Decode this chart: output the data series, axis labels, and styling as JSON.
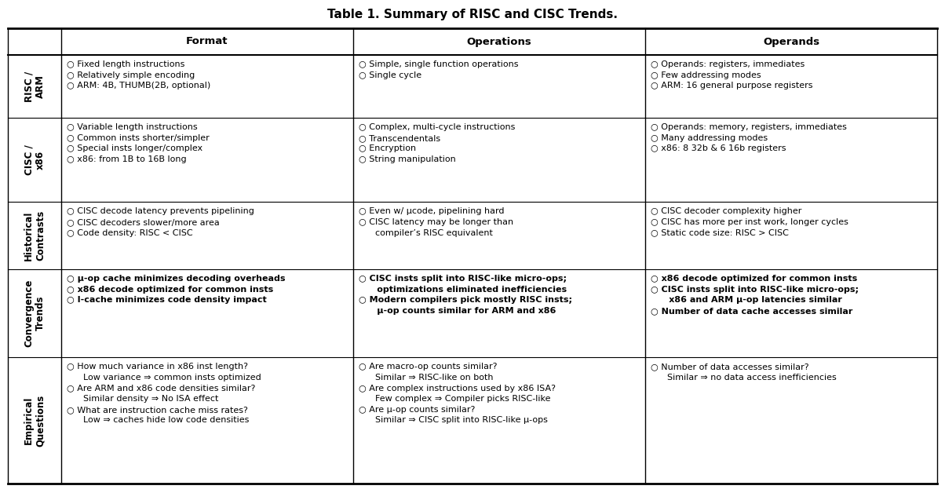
{
  "title": "Table 1. Summary of RISC and CISC Trends.",
  "col_headers": [
    "Format",
    "Operations",
    "Operands"
  ],
  "row_labels": [
    "RISC /\nARM",
    "CISC /\nx86",
    "Historical\nContrasts",
    "Convergence\nTrends",
    "Empirical\nQuestions"
  ],
  "cells": [
    [
      "○ Fixed length instructions\n○ Relatively simple encoding\n○ ARM: 4B, THUMB(2B, optional)",
      "○ Simple, single function operations\n○ Single cycle",
      "○ Operands: registers, immediates\n○ Few addressing modes\n○ ARM: 16 general purpose registers"
    ],
    [
      "○ Variable length instructions\n○ Common insts shorter/simpler\n○ Special insts longer/complex\n○ x86: from 1B to 16B long",
      "○ Complex, multi-cycle instructions\n○ Transcendentals\n○ Encryption\n○ String manipulation",
      "○ Operands: memory, registers, immediates\n○ Many addressing modes\n○ x86: 8 32b & 6 16b registers"
    ],
    [
      "○ CISC decode latency prevents pipelining\n○ CISC decoders slower/more area\n○ Code density: RISC < CISC",
      "○ Even w/ μcode, pipelining hard\n○ CISC latency may be longer than\n      compiler’s RISC equivalent",
      "○ CISC decoder complexity higher\n○ CISC has more per inst work, longer cycles\n○ Static code size: RISC > CISC"
    ],
    [
      "○ μ-op cache minimizes decoding overheads\n○ x86 decode optimized for common insts\n○ I-cache minimizes code density impact",
      "○ CISC insts split into RISC-like micro-ops;\n      optimizations eliminated inefficiencies\n○ Modern compilers pick mostly RISC insts;\n      μ-op counts similar for ARM and x86",
      "○ x86 decode optimized for common insts\n○ CISC insts split into RISC-like micro-ops;\n      x86 and ARM μ-op latencies similar\n○ Number of data cache accesses similar"
    ],
    [
      "○ How much variance in x86 inst length?\n      Low variance ⇒ common insts optimized\n○ Are ARM and x86 code densities similar?\n      Similar density ⇒ No ISA effect\n○ What are instruction cache miss rates?\n      Low ⇒ caches hide low code densities",
      "○ Are macro-op counts similar?\n      Similar ⇒ RISC-like on both\n○ Are complex instructions used by x86 ISA?\n      Few complex ⇒ Compiler picks RISC-like\n○ Are μ-op counts similar?\n      Similar ⇒ CISC split into RISC-like μ-ops",
      "○ Number of data accesses similar?\n      Similar ⇒ no data access inefficiencies"
    ]
  ],
  "bold_rows": [
    3
  ],
  "fig_width": 12.04,
  "fig_height": 6.28,
  "dpi": 100,
  "background_color": "#ffffff",
  "text_color": "#000000",
  "title_fontsize": 11,
  "header_fontsize": 9.5,
  "row_label_fontsize": 8.5,
  "cell_fontsize": 8.0,
  "bold_cell_fontsize": 8.0
}
